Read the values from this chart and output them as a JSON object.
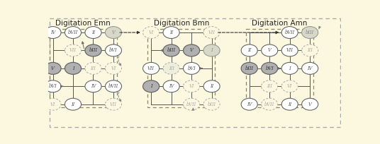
{
  "bg_color": "#fcf8e0",
  "title_fontsize": 7.5,
  "label_fontsize": 4.8,
  "panels": [
    {
      "title": "Digitation Emn",
      "nodes": [
        {
          "row": 0,
          "col": 0,
          "label": "IV",
          "style": "white"
        },
        {
          "row": 0,
          "col": 1,
          "label": "bVII",
          "style": "white"
        },
        {
          "row": 0,
          "col": 2,
          "label": "II",
          "style": "white"
        },
        {
          "row": 0,
          "col": 3,
          "label": "V",
          "style": "light"
        },
        {
          "row": 1,
          "col": 1,
          "label": "VII",
          "style": "dashed"
        },
        {
          "row": 1,
          "col": 2,
          "label": "bIII",
          "style": "gray"
        },
        {
          "row": 1,
          "col": 3,
          "label": "bVI",
          "style": "white"
        },
        {
          "row": 2,
          "col": 0,
          "label": "V",
          "style": "gray"
        },
        {
          "row": 2,
          "col": 1,
          "label": "I",
          "style": "gray"
        },
        {
          "row": 2,
          "col": 2,
          "label": "III",
          "style": "dashed"
        },
        {
          "row": 2,
          "col": 3,
          "label": "VI",
          "style": "dashed"
        },
        {
          "row": 3,
          "col": 0,
          "label": "bVI",
          "style": "white"
        },
        {
          "row": 3,
          "col": 2,
          "label": "IV",
          "style": "white"
        },
        {
          "row": 3,
          "col": 3,
          "label": "bVII",
          "style": "white"
        },
        {
          "row": 4,
          "col": 0,
          "label": "VI",
          "style": "dashed"
        },
        {
          "row": 4,
          "col": 1,
          "label": "II",
          "style": "white"
        },
        {
          "row": 4,
          "col": 3,
          "label": "VII",
          "style": "dashed"
        }
      ]
    },
    {
      "title": "Digitation Bmn",
      "nodes": [
        {
          "row": 0,
          "col": 0,
          "label": "VI",
          "style": "dashed"
        },
        {
          "row": 0,
          "col": 1,
          "label": "II",
          "style": "white"
        },
        {
          "row": 0,
          "col": 3,
          "label": "VII",
          "style": "dashed"
        },
        {
          "row": 1,
          "col": 1,
          "label": "bIII",
          "style": "gray"
        },
        {
          "row": 1,
          "col": 2,
          "label": "V",
          "style": "gray"
        },
        {
          "row": 1,
          "col": 3,
          "label": "I",
          "style": "light"
        },
        {
          "row": 2,
          "col": 0,
          "label": "VII",
          "style": "white"
        },
        {
          "row": 2,
          "col": 1,
          "label": "III",
          "style": "dashed_light"
        },
        {
          "row": 2,
          "col": 2,
          "label": "bVI",
          "style": "white"
        },
        {
          "row": 3,
          "col": 0,
          "label": "I",
          "style": "gray"
        },
        {
          "row": 3,
          "col": 1,
          "label": "IV",
          "style": "white"
        },
        {
          "row": 3,
          "col": 2,
          "label": "VI",
          "style": "dashed"
        },
        {
          "row": 3,
          "col": 3,
          "label": "II",
          "style": "white"
        },
        {
          "row": 4,
          "col": 2,
          "label": "bVII",
          "style": "dashed"
        },
        {
          "row": 4,
          "col": 3,
          "label": "bIII",
          "style": "dashed"
        }
      ]
    },
    {
      "title": "Digitation Amn",
      "nodes": [
        {
          "row": 0,
          "col": 2,
          "label": "bVII",
          "style": "white"
        },
        {
          "row": 0,
          "col": 3,
          "label": "bIII",
          "style": "light"
        },
        {
          "row": 1,
          "col": 0,
          "label": "II",
          "style": "white"
        },
        {
          "row": 1,
          "col": 1,
          "label": "V",
          "style": "white"
        },
        {
          "row": 1,
          "col": 2,
          "label": "VII",
          "style": "white"
        },
        {
          "row": 1,
          "col": 3,
          "label": "III",
          "style": "dashed"
        },
        {
          "row": 2,
          "col": 0,
          "label": "bIII",
          "style": "gray"
        },
        {
          "row": 2,
          "col": 1,
          "label": "bVI",
          "style": "gray"
        },
        {
          "row": 2,
          "col": 2,
          "label": "I",
          "style": "white"
        },
        {
          "row": 2,
          "col": 3,
          "label": "IV",
          "style": "white"
        },
        {
          "row": 3,
          "col": 1,
          "label": "III",
          "style": "dashed"
        },
        {
          "row": 3,
          "col": 2,
          "label": "VI",
          "style": "dashed"
        },
        {
          "row": 4,
          "col": 0,
          "label": "IV",
          "style": "white"
        },
        {
          "row": 4,
          "col": 1,
          "label": "bVII",
          "style": "dashed"
        },
        {
          "row": 4,
          "col": 2,
          "label": "II",
          "style": "white"
        },
        {
          "row": 4,
          "col": 3,
          "label": "V",
          "style": "white"
        }
      ]
    }
  ]
}
